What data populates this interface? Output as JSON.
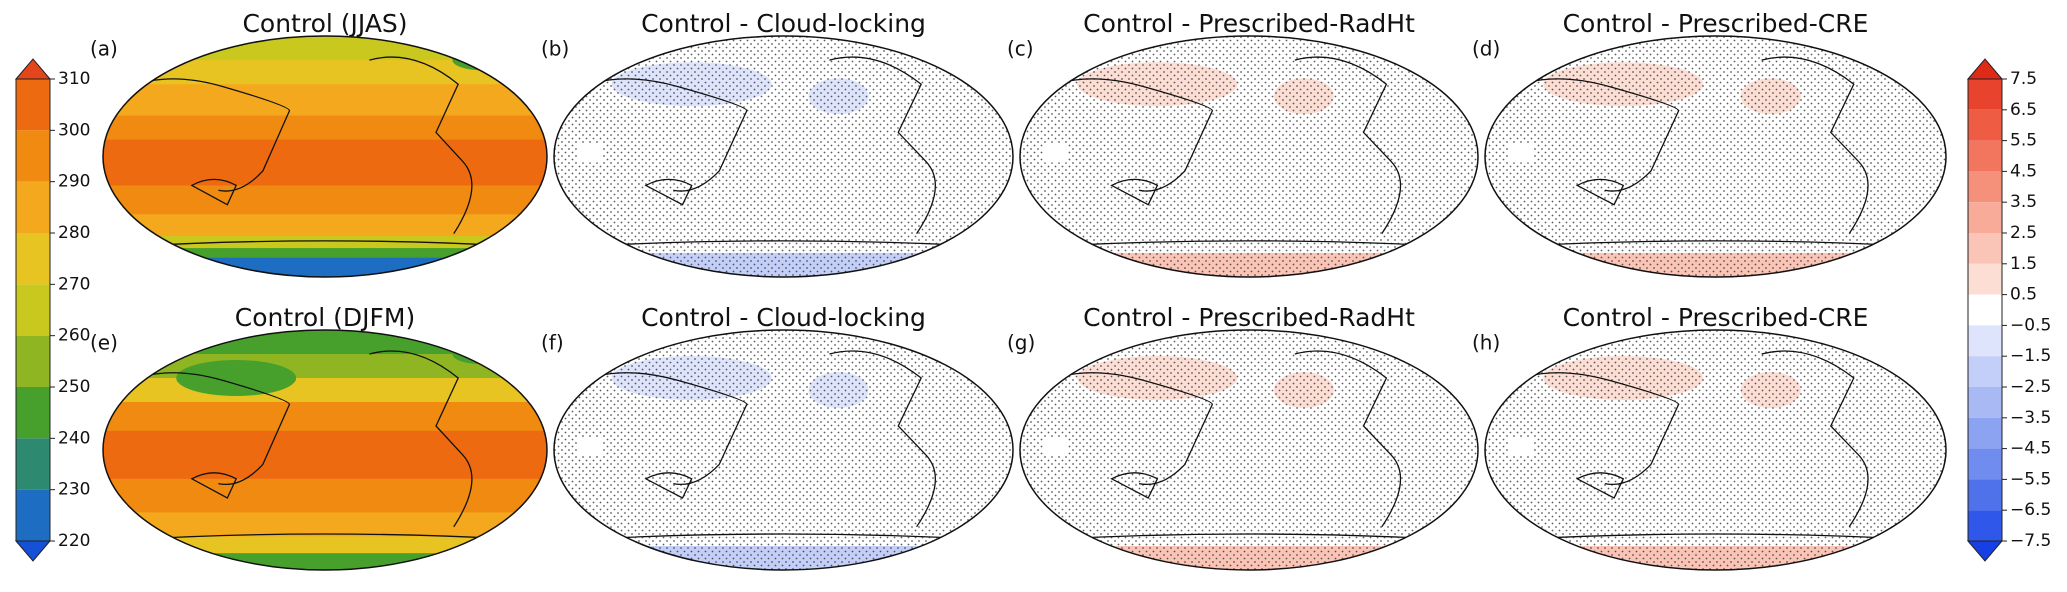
{
  "panels": [
    {
      "label": "(a)",
      "title": "Control (JJAS)",
      "kind": "control",
      "season": "JJAS"
    },
    {
      "label": "(b)",
      "title": "Control - Cloud-locking",
      "kind": "difference",
      "tint": "blue"
    },
    {
      "label": "(c)",
      "title": "Control - Prescribed-RadHt",
      "kind": "difference",
      "tint": "red"
    },
    {
      "label": "(d)",
      "title": "Control - Prescribed-CRE",
      "kind": "difference",
      "tint": "red"
    },
    {
      "label": "(e)",
      "title": "Control (DJFM)",
      "kind": "control",
      "season": "DJFM"
    },
    {
      "label": "(f)",
      "title": "Control - Cloud-locking",
      "kind": "difference",
      "tint": "blue"
    },
    {
      "label": "(g)",
      "title": "Control - Prescribed-RadHt",
      "kind": "difference",
      "tint": "red"
    },
    {
      "label": "(h)",
      "title": "Control - Prescribed-CRE",
      "kind": "difference",
      "tint": "red"
    }
  ],
  "colorbars": [
    {
      "lim": [
        220,
        310
      ],
      "ticks": [
        310,
        300,
        290,
        280,
        270,
        260,
        250,
        240,
        230,
        220
      ],
      "colors": [
        "#ee6a10",
        "#f08a10",
        "#f4a81e",
        "#e8c422",
        "#c9c81e",
        "#8fb522",
        "#47a02c",
        "#2d8a70",
        "#1d6ec2"
      ],
      "extend_colors": [
        "#e2461a",
        "#1450d8"
      ]
    },
    {
      "lim": [
        -7.5,
        7.5
      ],
      "ticks": [
        7.5,
        6.5,
        5.5,
        4.5,
        3.5,
        2.5,
        1.5,
        0.5,
        {
          "value": -0.5,
          "label": "−0.5"
        },
        {
          "value": -1.5,
          "label": "−1.5"
        },
        {
          "value": -2.5,
          "label": "−2.5"
        },
        {
          "value": -3.5,
          "label": "−3.5"
        },
        {
          "value": -4.5,
          "label": "−4.5"
        },
        {
          "value": -5.5,
          "label": "−5.5"
        },
        {
          "value": -6.5,
          "label": "−6.5"
        },
        {
          "value": -7.5,
          "label": "−7.5"
        }
      ],
      "colors": [
        "#e8432c",
        "#ee5c44",
        "#f2765e",
        "#f5917b",
        "#f8ab98",
        "#fac4b6",
        "#fcded5",
        "#ffffff",
        "#dde4fb",
        "#c3cff8",
        "#a8b9f4",
        "#8ca3f1",
        "#6f8cee",
        "#4f72eb",
        "#2f58ea"
      ],
      "extend_colors": [
        "#e02a18",
        "#1640e6"
      ]
    }
  ]
}
